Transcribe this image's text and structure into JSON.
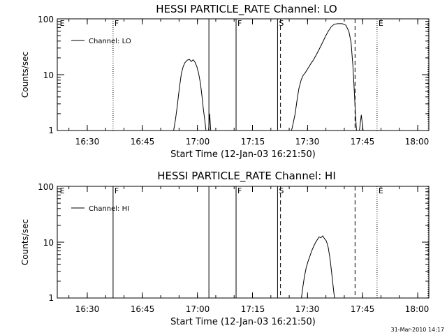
{
  "chart_data": [
    {
      "type": "line",
      "title": "HESSI PARTICLE_RATE Channel: LO",
      "xlabel": "Start Time (12-Jan-03 16:21:50)",
      "ylabel": "Counts/sec",
      "x_unit": "minutes after 16:21:50",
      "xlim": [
        0,
        101.2
      ],
      "ylim": [
        1,
        100
      ],
      "yscale": "log",
      "x_ticks": [
        {
          "value": 8.17,
          "label": "16:30"
        },
        {
          "value": 23.17,
          "label": "16:45"
        },
        {
          "value": 38.17,
          "label": "17:00"
        },
        {
          "value": 53.17,
          "label": "17:15"
        },
        {
          "value": 68.17,
          "label": "17:30"
        },
        {
          "value": 83.17,
          "label": "17:45"
        },
        {
          "value": 98.17,
          "label": "18:00"
        }
      ],
      "y_ticks": [
        {
          "value": 1,
          "label": "1"
        },
        {
          "value": 10,
          "label": "10"
        },
        {
          "value": 100,
          "label": "100"
        }
      ],
      "legend": {
        "placement": "top-left",
        "entries": [
          "Channel: LO"
        ]
      },
      "markers": [
        {
          "x": 0.3,
          "label": "E",
          "style": "none"
        },
        {
          "x": 15.2,
          "label": "F",
          "style": "dotted"
        },
        {
          "x": 41.3,
          "label": "",
          "style": "solid"
        },
        {
          "x": 48.7,
          "label": "F",
          "style": "solid"
        },
        {
          "x": 60.0,
          "label": "S",
          "style": "solid"
        },
        {
          "x": 60.8,
          "label": "",
          "style": "dashed"
        },
        {
          "x": 81.1,
          "label": "",
          "style": "dashed"
        },
        {
          "x": 87.1,
          "label": "E",
          "style": "dotted"
        },
        {
          "x": 101.0,
          "label": "",
          "style": "dotted"
        }
      ],
      "series": [
        {
          "name": "Channel: LO",
          "segments": [
            [
              [
                31.7,
                1.0
              ],
              [
                32.2,
                1.6
              ],
              [
                32.6,
                2.5
              ],
              [
                33.0,
                4.2
              ],
              [
                33.4,
                6.8
              ],
              [
                33.8,
                10.5
              ],
              [
                34.3,
                14.0
              ],
              [
                34.8,
                16.5
              ],
              [
                35.4,
                18.2
              ],
              [
                36.0,
                18.8
              ],
              [
                36.5,
                17.2
              ],
              [
                37.0,
                18.5
              ],
              [
                37.5,
                16.8
              ],
              [
                38.0,
                14.0
              ],
              [
                38.5,
                10.5
              ],
              [
                39.0,
                7.0
              ],
              [
                39.4,
                4.2
              ],
              [
                39.8,
                2.4
              ],
              [
                40.2,
                1.5
              ],
              [
                40.5,
                1.0
              ]
            ],
            [
              [
                41.2,
                1.0
              ],
              [
                41.5,
                2.0
              ],
              [
                41.8,
                1.0
              ]
            ],
            [
              [
                63.8,
                1.0
              ],
              [
                64.2,
                1.3
              ],
              [
                64.8,
                2.0
              ],
              [
                65.3,
                3.5
              ],
              [
                65.8,
                5.6
              ],
              [
                66.4,
                8.0
              ],
              [
                67.0,
                9.8
              ],
              [
                67.6,
                11.0
              ],
              [
                68.3,
                13.0
              ],
              [
                69.0,
                15.5
              ],
              [
                69.8,
                18.5
              ],
              [
                70.6,
                23.0
              ],
              [
                71.4,
                29.0
              ],
              [
                72.2,
                37.0
              ],
              [
                73.0,
                48.0
              ],
              [
                73.8,
                60.0
              ],
              [
                74.6,
                72.0
              ],
              [
                75.4,
                80.0
              ],
              [
                76.4,
                82.0
              ],
              [
                77.6,
                82.0
              ],
              [
                78.6,
                77.0
              ],
              [
                79.4,
                60.0
              ],
              [
                80.0,
                38.0
              ],
              [
                80.5,
                15.0
              ],
              [
                80.9,
                5.0
              ],
              [
                81.2,
                2.0
              ],
              [
                81.5,
                1.0
              ]
            ],
            [
              [
                82.3,
                1.0
              ],
              [
                82.8,
                1.9
              ],
              [
                83.3,
                1.0
              ]
            ]
          ]
        }
      ]
    },
    {
      "type": "line",
      "title": "HESSI PARTICLE_RATE Channel: HI",
      "xlabel": "Start Time (12-Jan-03 16:21:50)",
      "ylabel": "Counts/sec",
      "x_unit": "minutes after 16:21:50",
      "xlim": [
        0,
        101.2
      ],
      "ylim": [
        1,
        100
      ],
      "yscale": "log",
      "x_ticks": [
        {
          "value": 8.17,
          "label": "16:30"
        },
        {
          "value": 23.17,
          "label": "16:45"
        },
        {
          "value": 38.17,
          "label": "17:00"
        },
        {
          "value": 53.17,
          "label": "17:15"
        },
        {
          "value": 68.17,
          "label": "17:30"
        },
        {
          "value": 83.17,
          "label": "17:45"
        },
        {
          "value": 98.17,
          "label": "18:00"
        }
      ],
      "y_ticks": [
        {
          "value": 1,
          "label": "1"
        },
        {
          "value": 10,
          "label": "10"
        },
        {
          "value": 100,
          "label": "100"
        }
      ],
      "legend": {
        "placement": "top-left",
        "entries": [
          "Channel: HI"
        ]
      },
      "markers": [
        {
          "x": 0.3,
          "label": "E",
          "style": "none"
        },
        {
          "x": 15.2,
          "label": "F",
          "style": "solid"
        },
        {
          "x": 41.3,
          "label": "",
          "style": "solid"
        },
        {
          "x": 48.7,
          "label": "F",
          "style": "solid"
        },
        {
          "x": 60.0,
          "label": "S",
          "style": "solid"
        },
        {
          "x": 60.8,
          "label": "",
          "style": "dashed"
        },
        {
          "x": 81.1,
          "label": "",
          "style": "dashed"
        },
        {
          "x": 87.1,
          "label": "E",
          "style": "dotted"
        },
        {
          "x": 101.0,
          "label": "",
          "style": "dotted"
        }
      ],
      "series": [
        {
          "name": "Channel: HI",
          "segments": [
            [
              [
                66.5,
                1.0
              ],
              [
                66.9,
                1.6
              ],
              [
                67.3,
                2.4
              ],
              [
                67.8,
                3.5
              ],
              [
                68.3,
                4.5
              ],
              [
                68.8,
                5.6
              ],
              [
                69.3,
                7.0
              ],
              [
                69.8,
                8.3
              ],
              [
                70.3,
                9.8
              ],
              [
                70.8,
                11.0
              ],
              [
                71.3,
                12.4
              ],
              [
                71.8,
                12.0
              ],
              [
                72.3,
                13.0
              ],
              [
                72.8,
                11.5
              ],
              [
                73.3,
                10.5
              ],
              [
                73.8,
                8.0
              ],
              [
                74.3,
                5.0
              ],
              [
                74.8,
                2.6
              ],
              [
                75.2,
                1.5
              ],
              [
                75.5,
                1.0
              ]
            ]
          ]
        }
      ]
    }
  ],
  "footer": {
    "timestamp": "31-Mar-2010 14:17"
  }
}
